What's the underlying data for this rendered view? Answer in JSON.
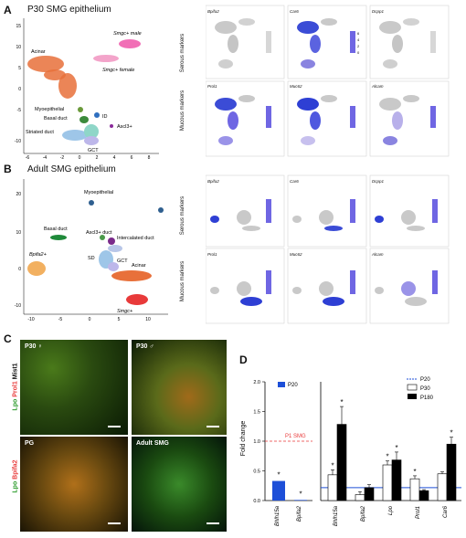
{
  "panel_a": {
    "letter": "A",
    "title": "P30 SMG epithelium",
    "umap_labels": {
      "acinar": "Acinar",
      "smgc_male": "Smgc+ male",
      "smgc_female": "Smgc+ female",
      "myoepithelial": "Myoepithelial",
      "basal_duct": "Basal duct",
      "id": "ID",
      "ascl3": "Ascl3+",
      "striated_duct": "Striated duct",
      "gct": "GCT"
    },
    "y_ticks": [
      "15",
      "10",
      "5",
      "0",
      "-5",
      "-10"
    ],
    "x_ticks": [
      "-6",
      "-4",
      "-2",
      "0",
      "2",
      "4",
      "6",
      "8"
    ],
    "serous_label": "Serous markers",
    "mucous_label": "Mucous markers",
    "feature_genes_row1": [
      "Bpifa2",
      "Car6",
      "Dcpp1"
    ],
    "feature_genes_row2": [
      "Prol1",
      "Muc62",
      "Alcam"
    ],
    "colorbar_ticks": [
      "6",
      "4",
      "2",
      "0"
    ]
  },
  "panel_b": {
    "letter": "B",
    "title": "Adult SMG epithelium",
    "umap_labels": {
      "myoepithelial": "Myoepithelial",
      "basal_duct": "Basal duct",
      "ascl3": "Ascl3+ duct",
      "intercalated": "Intercalated duct",
      "bpifa2": "Bpifa2+",
      "sd": "SD",
      "gct": "GCT",
      "acinar": "Acinar",
      "smgc": "Smgc+"
    },
    "y_ticks": [
      "20",
      "10",
      "0",
      "-10"
    ],
    "x_ticks": [
      "-10",
      "-5",
      "0",
      "5",
      "10"
    ],
    "serous_label": "Serous markers",
    "mucous_label": "Mucous markers",
    "feature_genes_row1": [
      "Bpifa2",
      "Car6",
      "Dcpp1"
    ],
    "feature_genes_row2": [
      "Prol1",
      "Muc62",
      "Alcam"
    ],
    "colorbar_ticks": [
      "6",
      "4",
      "2",
      "0"
    ]
  },
  "panel_c": {
    "letter": "C",
    "side_top_lpo": "Lpo",
    "side_top_prol1": "Prol1",
    "side_top_mist1": "Mist1",
    "side_bot_lpo": "Lpo",
    "side_bot_bpifa2": "Bpifa2",
    "image_labels": [
      "P30 ♀",
      "P30 ♂",
      "PG",
      "Adult SMG"
    ]
  },
  "panel_d": {
    "letter": "D",
    "ylabel": "Fold change",
    "left_legend": "P20",
    "p1_label": "P1 SMG",
    "right_legend": [
      "P20",
      "P30",
      "P180"
    ],
    "star": "*"
  },
  "chart_data": [
    {
      "type": "bar",
      "categories": [
        "Bhlh15a",
        "Bpifa2"
      ],
      "series": [
        {
          "name": "P20",
          "values": [
            0.33,
            0.01
          ]
        }
      ],
      "reference_line": {
        "value": 1.0,
        "label": "P1 SMG"
      },
      "ylim": [
        0,
        2.0
      ],
      "y_ticks": [
        "0.0",
        "0.5",
        "1.0",
        "1.5",
        "2.0"
      ],
      "ylabel": "Fold change",
      "significance": [
        true,
        true
      ],
      "colors": {
        "P20": "#1d4fd8"
      }
    },
    {
      "type": "bar",
      "categories": [
        "Bhlh15a",
        "Bpifa2",
        "Lpo",
        "Prol1",
        "Car6"
      ],
      "series": [
        {
          "name": "P30",
          "values": [
            2.6,
            0.6,
            3.6,
            2.2,
            2.7
          ],
          "errors": [
            0.5,
            0.3,
            0.4,
            0.3,
            0.2
          ]
        },
        {
          "name": "P180",
          "values": [
            7.7,
            1.3,
            4.1,
            1.0,
            5.7
          ],
          "errors": [
            1.8,
            0.3,
            0.8,
            0.1,
            0.7
          ]
        }
      ],
      "reference_line": {
        "value": 1.3,
        "label": "P20"
      },
      "ylim": [
        0,
        12
      ],
      "significance": [
        [
          true,
          true
        ],
        [
          false,
          false
        ],
        [
          true,
          true
        ],
        [
          true,
          false
        ],
        [
          false,
          true
        ]
      ],
      "colors": {
        "P30": "#ffffff",
        "P180": "#000000",
        "P20": "#1d4fd8"
      }
    }
  ]
}
